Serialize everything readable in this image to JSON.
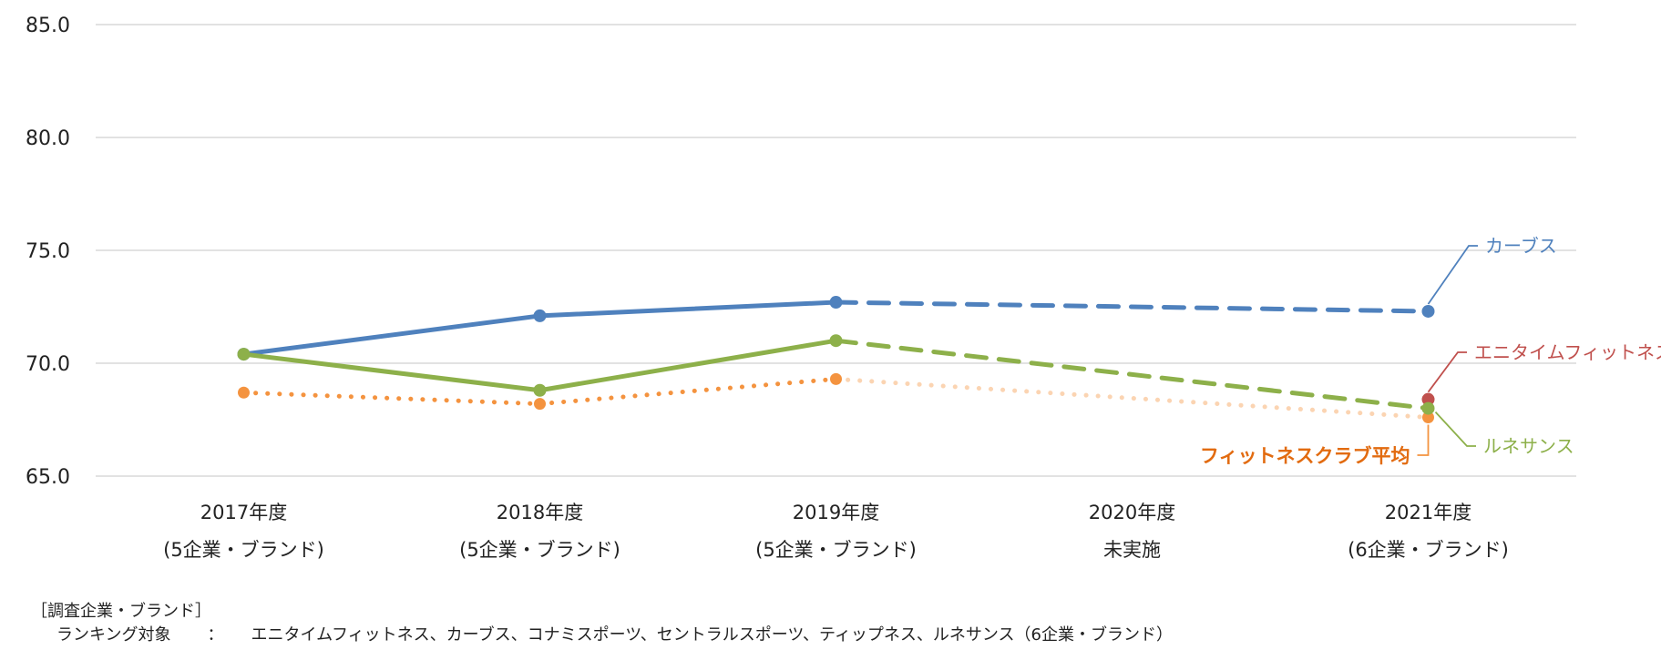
{
  "chart_data": {
    "type": "line",
    "ylim": [
      65.0,
      85.0
    ],
    "yticks": [
      "85.0",
      "80.0",
      "75.0",
      "70.0",
      "65.0"
    ],
    "categories": [
      {
        "year": "2017年度",
        "note": "(5企業・ブランド)"
      },
      {
        "year": "2018年度",
        "note": "(5企業・ブランド)"
      },
      {
        "year": "2019年度",
        "note": "(5企業・ブランド)"
      },
      {
        "year": "2020年度",
        "note": "未実施"
      },
      {
        "year": "2021年度",
        "note": "(6企業・ブランド)"
      }
    ],
    "series": [
      {
        "name": "カーブス",
        "color": "#4f81bd",
        "style": "solid-then-dashed",
        "values": [
          70.4,
          72.1,
          72.7,
          null,
          72.3
        ],
        "label_color": "#4f81bd"
      },
      {
        "name": "ルネサンス",
        "color": "#8db04a",
        "style": "solid-then-dashed",
        "values": [
          70.4,
          68.8,
          71.0,
          null,
          68.0
        ],
        "label_color": "#8db04a"
      },
      {
        "name": "フィットネスクラブ平均",
        "color": "#f4933f",
        "style": "dotted",
        "values": [
          68.7,
          68.2,
          69.3,
          null,
          67.6
        ],
        "label_color": "#e26b10"
      },
      {
        "name": "エニタイムフィットネス",
        "color": "#c0504d",
        "style": "point",
        "values": [
          null,
          null,
          null,
          null,
          68.4
        ],
        "label_color": "#c0504d"
      }
    ]
  },
  "footnote": {
    "heading": "［調査企業・ブランド］",
    "label": "ランキング対象",
    "colon": "：",
    "list": "エニタイムフィットネス、カーブス、コナミスポーツ、セントラルスポーツ、ティップネス、ルネサンス（6企業・ブランド）"
  }
}
